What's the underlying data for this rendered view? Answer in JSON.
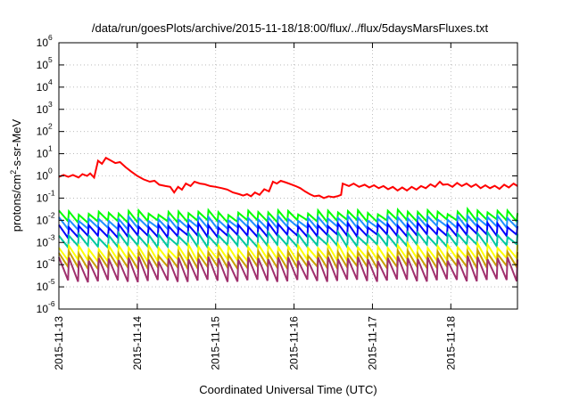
{
  "chart_data": {
    "type": "line",
    "title": "/data/run/goesPlots/archive/2015-11-18/18:00/flux/../flux/5daysMarsFluxes.txt",
    "xlabel": "Coordinated Universal Time (UTC)",
    "ylabel": {
      "base": "protons/cm",
      "sup": "2",
      "rest": "-s-sr-MeV"
    },
    "y_scale": "log",
    "ylim": [
      1e-06,
      1000000.0
    ],
    "y_ticks": [
      {
        "base": "10",
        "exp": "-6"
      },
      {
        "base": "10",
        "exp": "-5"
      },
      {
        "base": "10",
        "exp": "-4"
      },
      {
        "base": "10",
        "exp": "-3"
      },
      {
        "base": "10",
        "exp": "-2"
      },
      {
        "base": "10",
        "exp": "-1"
      },
      {
        "base": "10",
        "exp": "0"
      },
      {
        "base": "10",
        "exp": "1"
      },
      {
        "base": "10",
        "exp": "2"
      },
      {
        "base": "10",
        "exp": "3"
      },
      {
        "base": "10",
        "exp": "4"
      },
      {
        "base": "10",
        "exp": "5"
      },
      {
        "base": "10",
        "exp": "6"
      }
    ],
    "x_ticks": [
      "2015-11-13",
      "2015-11-14",
      "2015-11-15",
      "2015-11-16",
      "2015-11-17",
      "2015-11-18"
    ],
    "xlim_days": [
      0,
      5.85
    ],
    "grid": true,
    "legend": "none",
    "series": [
      {
        "color": "#ff0000",
        "points": [
          [
            0,
            0.9
          ],
          [
            0.06,
            1.1
          ],
          [
            0.12,
            0.9
          ],
          [
            0.18,
            1.1
          ],
          [
            0.25,
            0.85
          ],
          [
            0.3,
            1.2
          ],
          [
            0.36,
            1.0
          ],
          [
            0.4,
            1.3
          ],
          [
            0.45,
            0.85
          ],
          [
            0.5,
            4.8
          ],
          [
            0.55,
            3.5
          ],
          [
            0.6,
            6.5
          ],
          [
            0.66,
            5.0
          ],
          [
            0.72,
            3.8
          ],
          [
            0.78,
            4.2
          ],
          [
            0.85,
            2.5
          ],
          [
            0.92,
            1.6
          ],
          [
            1.0,
            1.0
          ],
          [
            1.08,
            0.7
          ],
          [
            1.16,
            0.55
          ],
          [
            1.22,
            0.6
          ],
          [
            1.28,
            0.4
          ],
          [
            1.36,
            0.35
          ],
          [
            1.42,
            0.32
          ],
          [
            1.47,
            0.18
          ],
          [
            1.52,
            0.32
          ],
          [
            1.57,
            0.24
          ],
          [
            1.62,
            0.45
          ],
          [
            1.68,
            0.35
          ],
          [
            1.73,
            0.55
          ],
          [
            1.8,
            0.45
          ],
          [
            1.86,
            0.42
          ],
          [
            1.93,
            0.35
          ],
          [
            2.0,
            0.32
          ],
          [
            2.08,
            0.28
          ],
          [
            2.15,
            0.24
          ],
          [
            2.22,
            0.18
          ],
          [
            2.3,
            0.15
          ],
          [
            2.35,
            0.13
          ],
          [
            2.4,
            0.15
          ],
          [
            2.45,
            0.12
          ],
          [
            2.5,
            0.18
          ],
          [
            2.56,
            0.14
          ],
          [
            2.62,
            0.25
          ],
          [
            2.68,
            0.2
          ],
          [
            2.73,
            0.55
          ],
          [
            2.78,
            0.45
          ],
          [
            2.83,
            0.6
          ],
          [
            2.9,
            0.5
          ],
          [
            2.96,
            0.42
          ],
          [
            3.02,
            0.35
          ],
          [
            3.08,
            0.28
          ],
          [
            3.14,
            0.2
          ],
          [
            3.2,
            0.15
          ],
          [
            3.26,
            0.12
          ],
          [
            3.32,
            0.13
          ],
          [
            3.38,
            0.1
          ],
          [
            3.44,
            0.12
          ],
          [
            3.5,
            0.11
          ],
          [
            3.55,
            0.12
          ],
          [
            3.6,
            0.14
          ],
          [
            3.62,
            0.45
          ],
          [
            3.7,
            0.35
          ],
          [
            3.76,
            0.45
          ],
          [
            3.83,
            0.32
          ],
          [
            3.9,
            0.4
          ],
          [
            3.96,
            0.3
          ],
          [
            4.02,
            0.38
          ],
          [
            4.08,
            0.28
          ],
          [
            4.14,
            0.35
          ],
          [
            4.2,
            0.25
          ],
          [
            4.26,
            0.32
          ],
          [
            4.32,
            0.22
          ],
          [
            4.38,
            0.3
          ],
          [
            4.44,
            0.22
          ],
          [
            4.5,
            0.32
          ],
          [
            4.56,
            0.24
          ],
          [
            4.62,
            0.35
          ],
          [
            4.68,
            0.28
          ],
          [
            4.74,
            0.42
          ],
          [
            4.8,
            0.32
          ],
          [
            4.86,
            0.55
          ],
          [
            4.9,
            0.4
          ],
          [
            4.96,
            0.42
          ],
          [
            5.02,
            0.32
          ],
          [
            5.08,
            0.48
          ],
          [
            5.14,
            0.35
          ],
          [
            5.2,
            0.45
          ],
          [
            5.26,
            0.32
          ],
          [
            5.32,
            0.42
          ],
          [
            5.38,
            0.28
          ],
          [
            5.44,
            0.38
          ],
          [
            5.5,
            0.28
          ],
          [
            5.56,
            0.36
          ],
          [
            5.62,
            0.26
          ],
          [
            5.68,
            0.4
          ],
          [
            5.74,
            0.3
          ],
          [
            5.8,
            0.45
          ],
          [
            5.85,
            0.35
          ]
        ]
      },
      {
        "color": "#00ff00",
        "sawtooth": {
          "top": 0.022,
          "bottom": 0.0085,
          "drift_top": 0.026,
          "drift_bottom": 0.01
        }
      },
      {
        "color": "#1e90ff",
        "sawtooth": {
          "top": 0.011,
          "bottom": 0.0042,
          "drift_top": 0.014,
          "drift_bottom": 0.0052
        }
      },
      {
        "color": "#0000ff",
        "sawtooth": {
          "top": 0.0055,
          "bottom": 0.0018,
          "drift_top": 0.0065,
          "drift_bottom": 0.0022
        }
      },
      {
        "color": "#00c8a0",
        "sawtooth": {
          "top": 0.0021,
          "bottom": 0.00065,
          "drift_top": 0.0024,
          "drift_bottom": 0.00075
        }
      },
      {
        "color": "#ffff00",
        "sawtooth": {
          "top": 0.00062,
          "bottom": 0.00015,
          "drift_top": 0.00072,
          "drift_bottom": 0.00018
        }
      },
      {
        "color": "#c8a000",
        "sawtooth": {
          "top": 0.00032,
          "bottom": 7e-05,
          "drift_top": 0.00036,
          "drift_bottom": 8e-05
        }
      },
      {
        "color": "#a0306e",
        "sawtooth": {
          "top": 0.00018,
          "bottom": 1.8e-05,
          "drift_top": 0.0002,
          "drift_bottom": 2e-05
        }
      }
    ]
  }
}
